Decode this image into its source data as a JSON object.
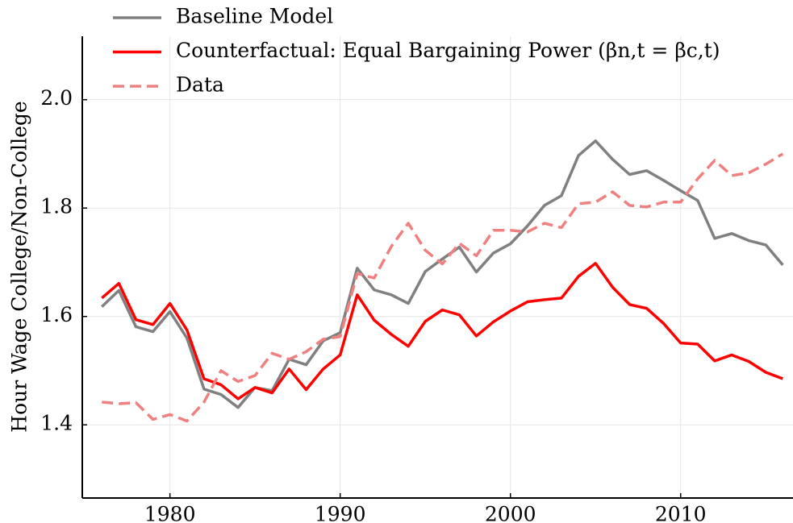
{
  "chart_data": {
    "type": "line",
    "ylabel": "Hour Wage College/Non-College",
    "x": [
      1976,
      1977,
      1978,
      1979,
      1980,
      1981,
      1982,
      1983,
      1984,
      1985,
      1986,
      1987,
      1988,
      1989,
      1990,
      1991,
      1992,
      1993,
      1994,
      1995,
      1996,
      1997,
      1998,
      1999,
      2000,
      2001,
      2002,
      2003,
      2004,
      2005,
      2006,
      2007,
      2008,
      2009,
      2010,
      2011,
      2012,
      2013,
      2014,
      2015,
      2016
    ],
    "series": [
      {
        "name": "Baseline Model",
        "color": "#808080",
        "dash": false,
        "values": [
          1.618,
          1.648,
          1.581,
          1.572,
          1.609,
          1.56,
          1.466,
          1.456,
          1.432,
          1.469,
          1.463,
          1.521,
          1.511,
          1.555,
          1.57,
          1.689,
          1.649,
          1.64,
          1.624,
          1.683,
          1.706,
          1.728,
          1.682,
          1.717,
          1.734,
          1.767,
          1.805,
          1.823,
          1.897,
          1.924,
          1.89,
          1.862,
          1.869,
          1.851,
          1.832,
          1.814,
          1.744,
          1.753,
          1.74,
          1.732,
          1.695
        ]
      },
      {
        "name": "Counterfactual: Equal Bargaining Power (βn,t = βc,t)",
        "color": "#ff0000",
        "dash": false,
        "values": [
          1.634,
          1.661,
          1.594,
          1.585,
          1.624,
          1.575,
          1.485,
          1.474,
          1.448,
          1.469,
          1.459,
          1.503,
          1.465,
          1.503,
          1.529,
          1.64,
          1.593,
          1.567,
          1.545,
          1.591,
          1.612,
          1.603,
          1.564,
          1.59,
          1.61,
          1.627,
          1.631,
          1.634,
          1.674,
          1.698,
          1.654,
          1.622,
          1.615,
          1.587,
          1.551,
          1.549,
          1.518,
          1.529,
          1.517,
          1.497,
          1.485
        ]
      },
      {
        "name": "Data",
        "color": "#f08080",
        "dash": true,
        "values": [
          1.442,
          1.439,
          1.441,
          1.41,
          1.419,
          1.407,
          1.442,
          1.5,
          1.48,
          1.491,
          1.532,
          1.521,
          1.535,
          1.558,
          1.563,
          1.679,
          1.671,
          1.729,
          1.772,
          1.722,
          1.697,
          1.735,
          1.712,
          1.759,
          1.759,
          1.756,
          1.772,
          1.764,
          1.808,
          1.811,
          1.83,
          1.805,
          1.802,
          1.811,
          1.811,
          1.854,
          1.888,
          1.86,
          1.865,
          1.881,
          1.9
        ]
      }
    ],
    "xlim": [
      1974.85,
      2016.6
    ],
    "ylim": [
      1.265,
      2.117
    ],
    "xticks": [
      1980,
      1990,
      2000,
      2010
    ],
    "yticks": [
      1.4,
      1.6,
      1.8,
      {
        "value": 2.0,
        "label": "2.0"
      }
    ],
    "grid": true,
    "legend": "upper left"
  }
}
